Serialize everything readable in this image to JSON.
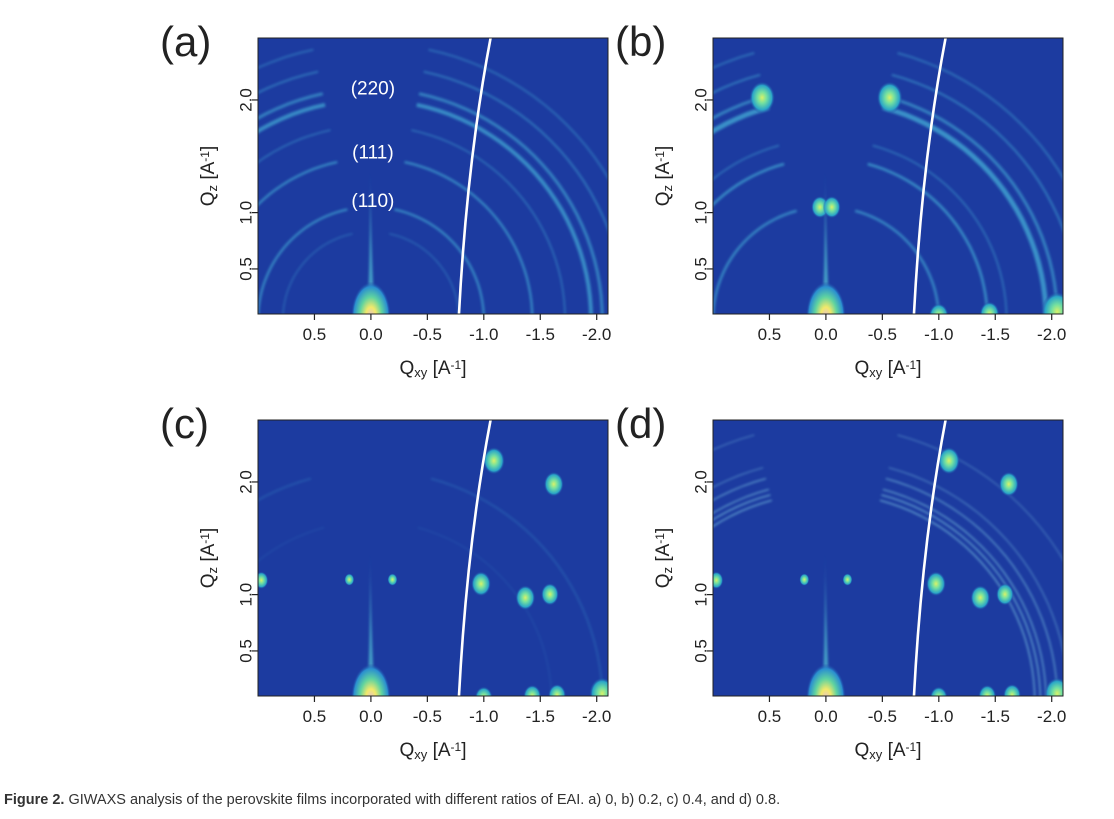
{
  "caption": {
    "label": "Figure 2.",
    "text": "GIWAXS analysis of the perovskite films incorporated with different ratios of EAI. a) 0, b) 0.2, c) 0.4, and d) 0.8."
  },
  "chart_data": [
    {
      "type": "heatmap",
      "panel_label": "(a)",
      "xlabel": "Q_xy [A^-1]",
      "ylabel": "Q_z [A^-1]",
      "x_ticks": [
        "0.5",
        "0.0",
        "-0.5",
        "-1.0",
        "-1.5",
        "-2.0"
      ],
      "y_ticks": [
        "0.5",
        "1.0",
        "2.0"
      ],
      "xlim": [
        1.0,
        -2.1
      ],
      "ylim": [
        0.1,
        2.55
      ],
      "pattern": "rings",
      "ring_annotations": [
        {
          "label": "(110)",
          "q": 1.0
        },
        {
          "label": "(111)",
          "q": 1.43
        },
        {
          "label": "(220)",
          "q": 2.0
        }
      ]
    },
    {
      "type": "heatmap",
      "panel_label": "(b)",
      "xlabel": "Q_xy [A^-1]",
      "ylabel": "Q_z [A^-1]",
      "x_ticks": [
        "0.5",
        "0.0",
        "-0.5",
        "-1.0",
        "-1.5",
        "-2.0"
      ],
      "y_ticks": [
        "0.5",
        "1.0",
        "2.0"
      ],
      "xlim": [
        1.0,
        -2.1
      ],
      "ylim": [
        0.1,
        2.55
      ],
      "pattern": "rings-textured"
    },
    {
      "type": "heatmap",
      "panel_label": "(c)",
      "xlabel": "Q_xy [A^-1]",
      "ylabel": "Q_z [A^-1]",
      "x_ticks": [
        "0.5",
        "0.0",
        "-0.5",
        "-1.0",
        "-1.5",
        "-2.0"
      ],
      "y_ticks": [
        "0.5",
        "1.0",
        "2.0"
      ],
      "xlim": [
        1.0,
        -2.1
      ],
      "ylim": [
        0.1,
        2.55
      ],
      "pattern": "spots"
    },
    {
      "type": "heatmap",
      "panel_label": "(d)",
      "xlabel": "Q_xy [A^-1]",
      "ylabel": "Q_z [A^-1]",
      "x_ticks": [
        "0.5",
        "0.0",
        "-0.5",
        "-1.0",
        "-1.5",
        "-2.0"
      ],
      "y_ticks": [
        "0.5",
        "1.0",
        "2.0"
      ],
      "xlim": [
        1.0,
        -2.1
      ],
      "ylim": [
        0.1,
        2.55
      ],
      "pattern": "spots-and-rings"
    }
  ],
  "colors": {
    "background": "#1c3ba0",
    "ring": "#3fa0d0",
    "ring_bright": "#5fd3b0",
    "spot": "#6fe0a0",
    "spot_core": "#c8f060",
    "beam": "#f0e060",
    "horizon": "#ffffff"
  }
}
